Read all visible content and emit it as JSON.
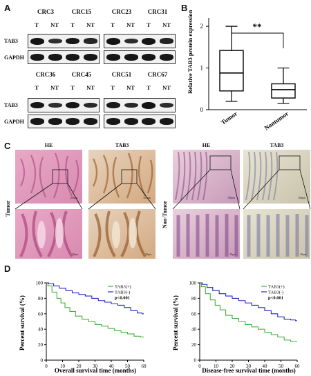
{
  "panels": {
    "a": "A",
    "b": "B",
    "c": "C",
    "d": "D"
  },
  "western": {
    "groups": [
      {
        "samples": [
          "CRC3",
          "CRC15"
        ],
        "lanes": [
          "T",
          "NT",
          "T",
          "NT"
        ]
      },
      {
        "samples": [
          "CRC23",
          "CRC31"
        ],
        "lanes": [
          "T",
          "NT",
          "T",
          "NT"
        ]
      },
      {
        "samples": [
          "CRC36",
          "CRC45"
        ],
        "lanes": [
          "T",
          "NT",
          "T",
          "NT"
        ]
      },
      {
        "samples": [
          "CRC51",
          "CRC67"
        ],
        "lanes": [
          "T",
          "NT",
          "T",
          "NT"
        ]
      }
    ],
    "proteins": [
      "TAB3",
      "GAPDH"
    ]
  },
  "boxplot": {
    "ylabel": "Relative TAB3 protein expression",
    "yticks": [
      "0",
      "1",
      "2"
    ],
    "categories": [
      "Tumor",
      "Nontumor"
    ],
    "significance": "**"
  },
  "histology": {
    "columns": [
      "HE",
      "TAB3",
      "HE",
      "TAB3"
    ],
    "rows": [
      "Tumor",
      "Non-Tumor"
    ],
    "scale_top": "100μm",
    "scale_bottom": "20μm"
  },
  "survival": {
    "ylabel": "Percent survival (%)",
    "xticks": [
      "0",
      "10",
      "20",
      "30",
      "40",
      "50",
      "60"
    ],
    "yticks": [
      "0",
      "20",
      "40",
      "60",
      "80",
      "100"
    ],
    "legend": [
      "TAB3(+)",
      "TAB3(-)"
    ],
    "pvalue": "p<0.001",
    "xlabels": [
      "Overall survival time (months)",
      "Disease-free survival time (months)"
    ]
  },
  "chart_data": [
    {
      "type": "box",
      "categories": [
        "Tumor",
        "Nontumor"
      ],
      "ylabel": "Relative TAB3 protein expression",
      "ylim": [
        0,
        2.2
      ],
      "boxes": [
        {
          "name": "Tumor",
          "min": 0.2,
          "q1": 0.45,
          "median": 0.88,
          "q3": 1.42,
          "max": 2.0
        },
        {
          "name": "Nontumor",
          "min": 0.15,
          "q1": 0.28,
          "median": 0.48,
          "q3": 0.62,
          "max": 1.0
        }
      ],
      "annotation": "**",
      "colors": {
        "box": "#000000"
      }
    },
    {
      "type": "line",
      "xlabel": "Overall survival time (months)",
      "ylabel": "Percent survival (%)",
      "xlim": [
        0,
        60
      ],
      "ylim": [
        0,
        100
      ],
      "annotation": "p<0.001",
      "series": [
        {
          "name": "TAB3(+)",
          "color": "#44b03a",
          "x": [
            0,
            2,
            5,
            8,
            10,
            13,
            16,
            20,
            24,
            28,
            32,
            36,
            40,
            44,
            48,
            52,
            56,
            60
          ],
          "y": [
            100,
            96,
            88,
            80,
            74,
            68,
            63,
            57,
            53,
            50,
            46,
            44,
            41,
            38,
            36,
            34,
            31,
            30
          ]
        },
        {
          "name": "TAB3(-)",
          "color": "#2328b8",
          "x": [
            0,
            3,
            6,
            10,
            14,
            18,
            22,
            26,
            30,
            34,
            38,
            42,
            46,
            50,
            54,
            58,
            60
          ],
          "y": [
            100,
            99,
            96,
            93,
            90,
            87,
            85,
            83,
            80,
            77,
            75,
            73,
            71,
            68,
            64,
            61,
            60
          ]
        }
      ]
    },
    {
      "type": "line",
      "xlabel": "Disease-free survival time (months)",
      "ylabel": "Percent survival (%)",
      "xlim": [
        0,
        60
      ],
      "ylim": [
        0,
        100
      ],
      "annotation": "p<0.001",
      "series": [
        {
          "name": "TAB3(+)",
          "color": "#44b03a",
          "x": [
            0,
            2,
            5,
            8,
            11,
            14,
            18,
            22,
            26,
            30,
            34,
            38,
            42,
            46,
            50,
            54,
            58,
            60
          ],
          "y": [
            100,
            95,
            86,
            78,
            71,
            65,
            58,
            54,
            50,
            46,
            43,
            40,
            36,
            33,
            30,
            26,
            24,
            24
          ]
        },
        {
          "name": "TAB3(-)",
          "color": "#2328b8",
          "x": [
            0,
            3,
            6,
            10,
            14,
            18,
            22,
            26,
            30,
            34,
            38,
            42,
            46,
            50,
            54,
            58,
            60
          ],
          "y": [
            100,
            98,
            94,
            90,
            86,
            83,
            80,
            77,
            74,
            71,
            68,
            64,
            60,
            56,
            53,
            52,
            51
          ]
        }
      ]
    }
  ]
}
